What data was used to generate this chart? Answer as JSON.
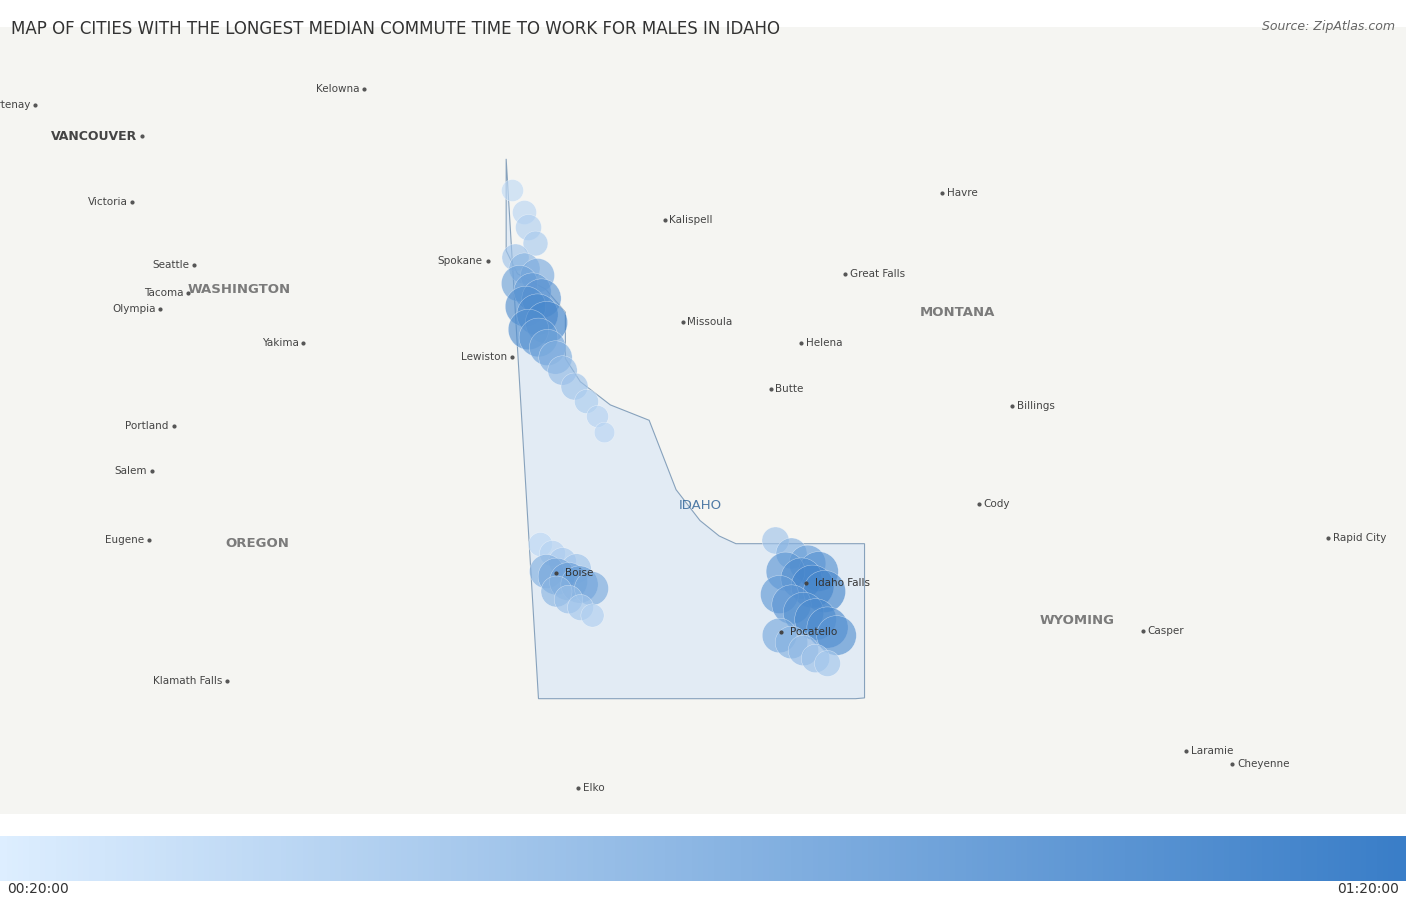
{
  "title": "MAP OF CITIES WITH THE LONGEST MEDIAN COMMUTE TIME TO WORK FOR MALES IN IDAHO",
  "source": "Source: ZipAtlas.com",
  "colorbar_min_label": "00:20:00",
  "colorbar_max_label": "01:20:00",
  "colorbar_color_min": "#ddeeff",
  "colorbar_color_max": "#3a7ec8",
  "map_bg_color": "#f5f5f2",
  "water_color": "#c8d8e8",
  "idaho_fill_color": "#dce8f5",
  "idaho_border_color": "#6688aa",
  "state_border_color": "#bbbbcc",
  "title_fontsize": 12,
  "source_fontsize": 9,
  "map_xlim": [
    -125.5,
    -102.0
  ],
  "map_ylim": [
    40.5,
    50.7
  ],
  "reference_cities": [
    {
      "name": "Courtenay",
      "lon": -124.99,
      "lat": 49.69,
      "dot": true,
      "ha": "right"
    },
    {
      "name": "VANCOUVER",
      "lon": -123.2,
      "lat": 49.28,
      "dot": true,
      "ha": "right",
      "bold": true,
      "fontsize": 9
    },
    {
      "name": "Victoria",
      "lon": -123.37,
      "lat": 48.43,
      "dot": true,
      "ha": "right"
    },
    {
      "name": "Seattle",
      "lon": -122.33,
      "lat": 47.61,
      "dot": true,
      "ha": "right"
    },
    {
      "name": "Tacoma",
      "lon": -122.44,
      "lat": 47.25,
      "dot": true,
      "ha": "right"
    },
    {
      "name": "Olympia",
      "lon": -122.9,
      "lat": 47.04,
      "dot": true,
      "ha": "right"
    },
    {
      "name": "Yakima",
      "lon": -120.51,
      "lat": 46.6,
      "dot": true,
      "ha": "right"
    },
    {
      "name": "Spokane",
      "lon": -117.43,
      "lat": 47.66,
      "dot": true,
      "ha": "right"
    },
    {
      "name": "Lewiston",
      "lon": -117.02,
      "lat": 46.42,
      "dot": true,
      "ha": "right"
    },
    {
      "name": "Portland",
      "lon": -122.68,
      "lat": 45.52,
      "dot": true,
      "ha": "right"
    },
    {
      "name": "Salem",
      "lon": -123.04,
      "lat": 44.94,
      "dot": true,
      "ha": "right"
    },
    {
      "name": "Eugene",
      "lon": -123.09,
      "lat": 44.05,
      "dot": true,
      "ha": "right"
    },
    {
      "name": "Klamath Falls",
      "lon": -121.78,
      "lat": 42.22,
      "dot": true,
      "ha": "right"
    },
    {
      "name": "Kelowna",
      "lon": -119.49,
      "lat": 49.89,
      "dot": true,
      "ha": "right"
    },
    {
      "name": "Kalispell",
      "lon": -114.31,
      "lat": 48.2,
      "dot": true,
      "ha": "left"
    },
    {
      "name": "Missoula",
      "lon": -114.01,
      "lat": 46.87,
      "dot": true,
      "ha": "left"
    },
    {
      "name": "Helena",
      "lon": -112.03,
      "lat": 46.6,
      "dot": true,
      "ha": "left"
    },
    {
      "name": "Butte",
      "lon": -112.54,
      "lat": 46.0,
      "dot": true,
      "ha": "left"
    },
    {
      "name": "Great Falls",
      "lon": -111.3,
      "lat": 47.5,
      "dot": true,
      "ha": "left"
    },
    {
      "name": "Havre",
      "lon": -109.68,
      "lat": 48.55,
      "dot": true,
      "ha": "left"
    },
    {
      "name": "Billings",
      "lon": -108.5,
      "lat": 45.78,
      "dot": true,
      "ha": "left"
    },
    {
      "name": "Cody",
      "lon": -109.06,
      "lat": 44.52,
      "dot": true,
      "ha": "left"
    },
    {
      "name": "Rapid City",
      "lon": -103.22,
      "lat": 44.08,
      "dot": true,
      "ha": "left"
    },
    {
      "name": "Casper",
      "lon": -106.32,
      "lat": 42.87,
      "dot": true,
      "ha": "left"
    },
    {
      "name": "Laramie",
      "lon": -105.59,
      "lat": 41.31,
      "dot": true,
      "ha": "left"
    },
    {
      "name": "Cheyenne",
      "lon": -104.82,
      "lat": 41.14,
      "dot": true,
      "ha": "left"
    },
    {
      "name": "Elko",
      "lon": -115.76,
      "lat": 40.83,
      "dot": true,
      "ha": "left"
    }
  ],
  "state_labels": [
    {
      "name": "WASHINGTON",
      "lon": -121.5,
      "lat": 47.3
    },
    {
      "name": "OREGON",
      "lon": -121.2,
      "lat": 44.0
    },
    {
      "name": "MONTANA",
      "lon": -109.5,
      "lat": 47.0
    },
    {
      "name": "WYOMING",
      "lon": -107.5,
      "lat": 43.0
    },
    {
      "name": "IDAHO",
      "lon": -113.8,
      "lat": 44.5
    }
  ],
  "idaho_cities": [
    {
      "name": "Boise",
      "lon": -116.2,
      "lat": 43.62
    },
    {
      "name": "Idaho Falls",
      "lon": -112.03,
      "lat": 43.49
    },
    {
      "name": "Pocatello",
      "lon": -112.44,
      "lat": 42.86
    }
  ],
  "bubbles": [
    {
      "lon": -116.95,
      "lat": 48.58,
      "value": 0.18,
      "size": 250
    },
    {
      "lon": -116.75,
      "lat": 48.3,
      "value": 0.22,
      "size": 300
    },
    {
      "lon": -116.68,
      "lat": 48.1,
      "value": 0.28,
      "size": 350
    },
    {
      "lon": -116.55,
      "lat": 47.9,
      "value": 0.32,
      "size": 320
    },
    {
      "lon": -116.9,
      "lat": 47.72,
      "value": 0.38,
      "size": 380
    },
    {
      "lon": -116.75,
      "lat": 47.58,
      "value": 0.52,
      "size": 500
    },
    {
      "lon": -116.52,
      "lat": 47.48,
      "value": 0.6,
      "size": 600
    },
    {
      "lon": -116.82,
      "lat": 47.38,
      "value": 0.68,
      "size": 680
    },
    {
      "lon": -116.6,
      "lat": 47.28,
      "value": 0.72,
      "size": 720
    },
    {
      "lon": -116.45,
      "lat": 47.18,
      "value": 0.8,
      "size": 800
    },
    {
      "lon": -116.72,
      "lat": 47.08,
      "value": 0.85,
      "size": 850
    },
    {
      "lon": -116.52,
      "lat": 46.98,
      "value": 0.88,
      "size": 880
    },
    {
      "lon": -116.38,
      "lat": 46.88,
      "value": 0.92,
      "size": 920
    },
    {
      "lon": -116.68,
      "lat": 46.78,
      "value": 0.85,
      "size": 850
    },
    {
      "lon": -116.5,
      "lat": 46.68,
      "value": 0.78,
      "size": 780
    },
    {
      "lon": -116.35,
      "lat": 46.55,
      "value": 0.68,
      "size": 680
    },
    {
      "lon": -116.22,
      "lat": 46.42,
      "value": 0.58,
      "size": 580
    },
    {
      "lon": -116.1,
      "lat": 46.25,
      "value": 0.45,
      "size": 450
    },
    {
      "lon": -115.9,
      "lat": 46.05,
      "value": 0.38,
      "size": 380
    },
    {
      "lon": -115.7,
      "lat": 45.85,
      "value": 0.3,
      "size": 300
    },
    {
      "lon": -115.52,
      "lat": 45.65,
      "value": 0.25,
      "size": 250
    },
    {
      "lon": -115.4,
      "lat": 45.45,
      "value": 0.22,
      "size": 220
    },
    {
      "lon": -116.48,
      "lat": 44.0,
      "value": 0.2,
      "size": 300
    },
    {
      "lon": -116.28,
      "lat": 43.88,
      "value": 0.25,
      "size": 350
    },
    {
      "lon": -116.1,
      "lat": 43.78,
      "value": 0.32,
      "size": 400
    },
    {
      "lon": -115.88,
      "lat": 43.68,
      "value": 0.38,
      "size": 450
    },
    {
      "lon": -116.38,
      "lat": 43.65,
      "value": 0.55,
      "size": 600
    },
    {
      "lon": -116.2,
      "lat": 43.58,
      "value": 0.65,
      "size": 700
    },
    {
      "lon": -116.0,
      "lat": 43.52,
      "value": 0.7,
      "size": 750
    },
    {
      "lon": -115.82,
      "lat": 43.48,
      "value": 0.72,
      "size": 720
    },
    {
      "lon": -115.62,
      "lat": 43.42,
      "value": 0.6,
      "size": 600
    },
    {
      "lon": -116.2,
      "lat": 43.38,
      "value": 0.5,
      "size": 500
    },
    {
      "lon": -116.0,
      "lat": 43.28,
      "value": 0.42,
      "size": 420
    },
    {
      "lon": -115.8,
      "lat": 43.18,
      "value": 0.35,
      "size": 350
    },
    {
      "lon": -115.6,
      "lat": 43.08,
      "value": 0.28,
      "size": 280
    },
    {
      "lon": -112.55,
      "lat": 44.05,
      "value": 0.38,
      "size": 380
    },
    {
      "lon": -112.28,
      "lat": 43.88,
      "value": 0.55,
      "size": 500
    },
    {
      "lon": -112.02,
      "lat": 43.75,
      "value": 0.72,
      "size": 700
    },
    {
      "lon": -111.82,
      "lat": 43.65,
      "value": 0.82,
      "size": 820
    },
    {
      "lon": -112.38,
      "lat": 43.65,
      "value": 0.78,
      "size": 780
    },
    {
      "lon": -112.12,
      "lat": 43.55,
      "value": 0.88,
      "size": 880
    },
    {
      "lon": -111.92,
      "lat": 43.45,
      "value": 0.95,
      "size": 950
    },
    {
      "lon": -111.72,
      "lat": 43.38,
      "value": 0.92,
      "size": 920
    },
    {
      "lon": -112.48,
      "lat": 43.35,
      "value": 0.75,
      "size": 750
    },
    {
      "lon": -112.28,
      "lat": 43.22,
      "value": 0.8,
      "size": 800
    },
    {
      "lon": -112.08,
      "lat": 43.12,
      "value": 0.85,
      "size": 850
    },
    {
      "lon": -111.88,
      "lat": 43.02,
      "value": 0.9,
      "size": 900
    },
    {
      "lon": -111.68,
      "lat": 42.92,
      "value": 0.88,
      "size": 880
    },
    {
      "lon": -111.52,
      "lat": 42.82,
      "value": 0.82,
      "size": 820
    },
    {
      "lon": -112.48,
      "lat": 42.82,
      "value": 0.62,
      "size": 620
    },
    {
      "lon": -112.28,
      "lat": 42.72,
      "value": 0.55,
      "size": 550
    },
    {
      "lon": -112.08,
      "lat": 42.62,
      "value": 0.48,
      "size": 480
    },
    {
      "lon": -111.88,
      "lat": 42.52,
      "value": 0.42,
      "size": 420
    },
    {
      "lon": -111.68,
      "lat": 42.45,
      "value": 0.35,
      "size": 350
    }
  ]
}
